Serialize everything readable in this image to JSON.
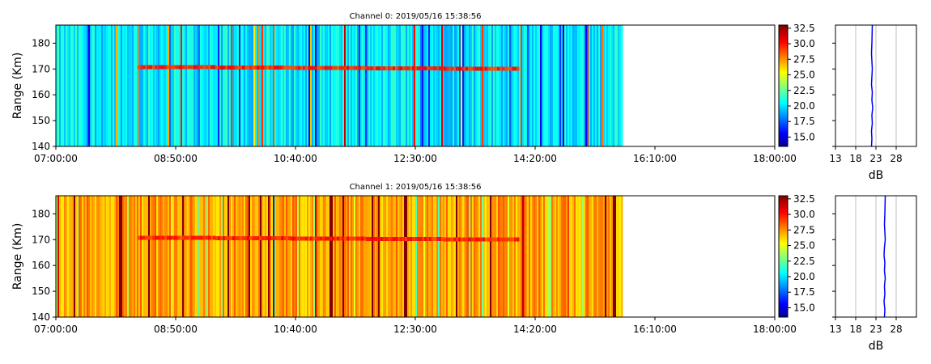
{
  "chart_data": [
    {
      "type": "heatmap",
      "title": "Channel 0: 2019/05/16 15:38:56",
      "ylabel": "Range (Km)",
      "xlabel": "",
      "x_ticks": [
        "07:00:00",
        "08:50:00",
        "10:40:00",
        "12:30:00",
        "14:20:00",
        "16:10:00",
        "18:00:00"
      ],
      "x_range": [
        "07:00:00",
        "18:00:00"
      ],
      "y_ticks": [
        "140",
        "150",
        "160",
        "170",
        "180"
      ],
      "ylim": [
        140,
        187
      ],
      "data_end_time": "15:38:56",
      "background_level_db": 20.5,
      "echo_layer": {
        "range_km": 170,
        "start": "08:15:00",
        "end": "14:05:00",
        "level_db": 30
      },
      "colorbar": {
        "colormap": "jet",
        "range": [
          13.5,
          33
        ],
        "ticks": [
          "15.0",
          "17.5",
          "20.0",
          "22.5",
          "25.0",
          "27.5",
          "30.0",
          "32.5"
        ]
      },
      "profile": {
        "type": "line",
        "xlabel": "dB",
        "x_ticks": [
          "13",
          "18",
          "23",
          "28"
        ],
        "xlim": [
          13,
          33
        ],
        "ylim": [
          140,
          187
        ],
        "grid": true,
        "series": [
          {
            "color": "#0000ff",
            "x": [
              21.9,
              22.0,
              21.9,
              22.1,
              22.0,
              22.2,
              22.0,
              22.1,
              21.9,
              22.0,
              22.1,
              22.0,
              21.9,
              22.0,
              22.1
            ],
            "y": [
              140,
              143,
              146,
              149,
              152,
              155,
              158,
              161,
              164,
              167,
              170,
              173,
              176,
              180,
              187
            ]
          }
        ]
      }
    },
    {
      "type": "heatmap",
      "title": "Channel 1: 2019/05/16 15:38:56",
      "ylabel": "Range (Km)",
      "xlabel": "",
      "x_ticks": [
        "07:00:00",
        "08:50:00",
        "10:40:00",
        "12:30:00",
        "14:20:00",
        "16:10:00",
        "18:00:00"
      ],
      "x_range": [
        "07:00:00",
        "18:00:00"
      ],
      "y_ticks": [
        "140",
        "150",
        "160",
        "170",
        "180"
      ],
      "ylim": [
        140,
        187
      ],
      "data_end_time": "15:38:56",
      "background_level_db": 27.5,
      "echo_layer": {
        "range_km": 170,
        "start": "08:15:00",
        "end": "14:05:00",
        "level_db": 30
      },
      "colorbar": {
        "colormap": "jet",
        "range": [
          13.5,
          33
        ],
        "ticks": [
          "15.0",
          "17.5",
          "20.0",
          "22.5",
          "25.0",
          "27.5",
          "30.0",
          "32.5"
        ]
      },
      "profile": {
        "type": "line",
        "xlabel": "dB",
        "x_ticks": [
          "13",
          "18",
          "23",
          "28"
        ],
        "xlim": [
          13,
          33
        ],
        "ylim": [
          140,
          187
        ],
        "grid": true,
        "series": [
          {
            "color": "#0000ff",
            "x": [
              25.1,
              25.2,
              25.0,
              25.2,
              25.1,
              25.3,
              25.1,
              25.2,
              25.0,
              25.1,
              25.3,
              25.2,
              25.1,
              25.2,
              25.3
            ],
            "y": [
              140,
              143,
              146,
              149,
              152,
              155,
              158,
              161,
              164,
              167,
              170,
              173,
              176,
              180,
              187
            ]
          }
        ]
      }
    }
  ]
}
